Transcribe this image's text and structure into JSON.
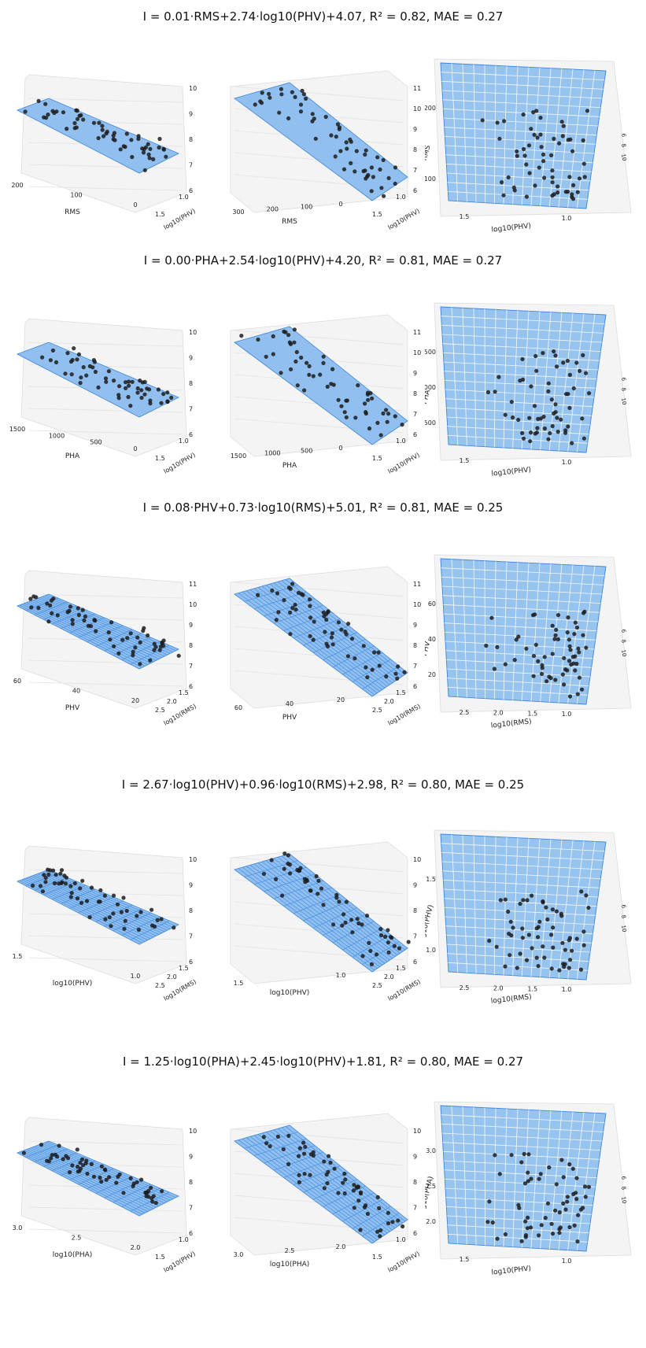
{
  "figures": [
    {
      "title": "I = 0.01·RMS+2.74·log10(PHV)+4.07,  R² = 0.82,  MAE = 0.27",
      "panels": [
        {
          "view": "side-left",
          "x_label": "RMS",
          "x_ticks": [
            "200",
            "100",
            "0"
          ],
          "y_label": "log10(PHV)",
          "y_ticks": [
            "1.5",
            "1.0"
          ],
          "z_ticks": [
            "10",
            "9",
            "8",
            "7",
            "6"
          ]
        },
        {
          "view": "side-right",
          "x_label": "RMS",
          "x_ticks": [
            "300",
            "200",
            "100",
            "0"
          ],
          "y_label": "log10(PHV)",
          "y_ticks": [
            "1.5",
            "1.0"
          ],
          "z_ticks": [
            "11",
            "10",
            "9",
            "8",
            "7",
            "6"
          ]
        },
        {
          "view": "top",
          "x_label": "log10(PHV)",
          "x_ticks": [
            "1.5",
            "1.0"
          ],
          "y_label": "RMS",
          "y_ticks": [
            "200",
            "100"
          ],
          "z_ticks": [
            "6",
            "8",
            "10"
          ]
        }
      ]
    },
    {
      "title": "I = 0.00·PHA+2.54·log10(PHV)+4.20,  R² = 0.81,  MAE = 0.27",
      "panels": [
        {
          "view": "side-left",
          "x_label": "PHA",
          "x_ticks": [
            "1500",
            "1000",
            "500",
            "0"
          ],
          "y_label": "log10(PHV)",
          "y_ticks": [
            "1.5",
            "1.0"
          ],
          "z_ticks": [
            "10",
            "9",
            "8",
            "7",
            "6"
          ]
        },
        {
          "view": "side-right",
          "x_label": "PHA",
          "x_ticks": [
            "1500",
            "1000",
            "500",
            "0"
          ],
          "y_label": "log10(PHV)",
          "y_ticks": [
            "1.5",
            "1.0"
          ],
          "z_ticks": [
            "11",
            "10",
            "9",
            "8",
            "7",
            "6"
          ]
        },
        {
          "view": "top",
          "x_label": "log10(PHV)",
          "x_ticks": [
            "1.5",
            "1.0"
          ],
          "y_label": "PHA",
          "y_ticks": [
            "1500",
            "1000",
            "500"
          ],
          "z_ticks": [
            "6",
            "8",
            "10"
          ]
        }
      ]
    },
    {
      "title": "I = 0.08·PHV+0.73·log10(RMS)+5.01,  R² = 0.81,  MAE = 0.25",
      "panels": [
        {
          "view": "side-left",
          "x_label": "PHV",
          "x_ticks": [
            "60",
            "40",
            "20"
          ],
          "y_label": "log10(RMS)",
          "y_ticks": [
            "2.5",
            "2.0",
            "1.5"
          ],
          "z_ticks": [
            "11",
            "10",
            "9",
            "8",
            "7",
            "6"
          ]
        },
        {
          "view": "side-right",
          "x_label": "PHV",
          "x_ticks": [
            "60",
            "40",
            "20"
          ],
          "y_label": "log10(RMS)",
          "y_ticks": [
            "2.5",
            "2.0",
            "1.5"
          ],
          "z_ticks": [
            "11",
            "10",
            "9",
            "8",
            "7",
            "6"
          ]
        },
        {
          "view": "top",
          "x_label": "log10(RMS)",
          "x_ticks": [
            "2.5",
            "2.0",
            "1.5",
            "1.0"
          ],
          "y_label": "PHV",
          "y_ticks": [
            "60",
            "40",
            "20"
          ],
          "z_ticks": [
            "6",
            "8",
            "10"
          ]
        }
      ]
    },
    {
      "title": "I = 2.67·log10(PHV)+0.96·log10(RMS)+2.98,  R² = 0.80,  MAE = 0.25",
      "panels": [
        {
          "view": "side-left",
          "x_label": "log10(PHV)",
          "x_ticks": [
            "1.5",
            "1.0"
          ],
          "y_label": "log10(RMS)",
          "y_ticks": [
            "2.5",
            "2.0",
            "1.5"
          ],
          "z_ticks": [
            "10",
            "9",
            "8",
            "7",
            "6"
          ]
        },
        {
          "view": "side-right",
          "x_label": "log10(PHV)",
          "x_ticks": [
            "1.5",
            "1.0"
          ],
          "y_label": "log10(RMS)",
          "y_ticks": [
            "2.5",
            "2.0",
            "1.5"
          ],
          "z_ticks": [
            "10",
            "9",
            "8",
            "7",
            "6"
          ]
        },
        {
          "view": "top",
          "x_label": "log10(RMS)",
          "x_ticks": [
            "2.5",
            "2.0",
            "1.5",
            "1.0"
          ],
          "y_label": "log10(PHV)",
          "y_ticks": [
            "1.5",
            "1.0"
          ],
          "z_ticks": [
            "6",
            "8",
            "10"
          ]
        }
      ]
    },
    {
      "title": "I = 1.25·log10(PHA)+2.45·log10(PHV)+1.81,  R² = 0.80,  MAE = 0.27",
      "panels": [
        {
          "view": "side-left",
          "x_label": "log10(PHA)",
          "x_ticks": [
            "3.0",
            "2.5",
            "2.0"
          ],
          "y_label": "log10(PHV)",
          "y_ticks": [
            "1.5",
            "1.0"
          ],
          "z_ticks": [
            "10",
            "9",
            "8",
            "7",
            "6"
          ]
        },
        {
          "view": "side-right",
          "x_label": "log10(PHA)",
          "x_ticks": [
            "3.0",
            "2.5",
            "2.0"
          ],
          "y_label": "log10(PHV)",
          "y_ticks": [
            "1.5",
            "1.0"
          ],
          "z_ticks": [
            "10",
            "9",
            "8",
            "7",
            "6"
          ]
        },
        {
          "view": "top",
          "x_label": "log10(PHV)",
          "x_ticks": [
            "1.5",
            "1.0"
          ],
          "y_label": "log10(PHA)",
          "y_ticks": [
            "3.0",
            "2.5",
            "2.0"
          ],
          "z_ticks": [
            "6",
            "8",
            "10"
          ]
        }
      ]
    }
  ],
  "colors": {
    "plane": "#7fb6ee",
    "plane_edge": "#3d86d8",
    "grid": "#4a8fe0",
    "points": "#1c1c1c",
    "axis": "#555555"
  },
  "chart_data": [
    {
      "type": "scatter",
      "title": "I = 0.01·RMS+2.74·log10(PHV)+4.07,  R² = 0.82,  MAE = 0.27",
      "xlabel": "RMS",
      "ylabel": "log10(PHV)",
      "zlabel": "",
      "zlim": [
        6,
        11
      ],
      "grid": true
    },
    {
      "type": "scatter",
      "title": "I = 0.00·PHA+2.54·log10(PHV)+4.20,  R² = 0.81,  MAE = 0.27",
      "xlabel": "PHA",
      "ylabel": "log10(PHV)",
      "zlabel": "",
      "zlim": [
        6,
        11
      ],
      "grid": true
    },
    {
      "type": "scatter",
      "title": "I = 0.08·PHV+0.73·log10(RMS)+5.01,  R² = 0.81,  MAE = 0.25",
      "xlabel": "PHV",
      "ylabel": "log10(RMS)",
      "zlabel": "",
      "zlim": [
        6,
        11
      ],
      "grid": true
    },
    {
      "type": "scatter",
      "title": "I = 2.67·log10(PHV)+0.96·log10(RMS)+2.98,  R² = 0.80,  MAE = 0.25",
      "xlabel": "log10(PHV)",
      "ylabel": "log10(RMS)",
      "zlabel": "",
      "zlim": [
        6,
        10
      ],
      "grid": true
    },
    {
      "type": "scatter",
      "title": "I = 1.25·log10(PHA)+2.45·log10(PHV)+1.81,  R² = 0.80,  MAE = 0.27",
      "xlabel": "log10(PHA)",
      "ylabel": "log10(PHV)",
      "zlabel": "",
      "zlim": [
        6,
        10
      ],
      "grid": true
    }
  ]
}
